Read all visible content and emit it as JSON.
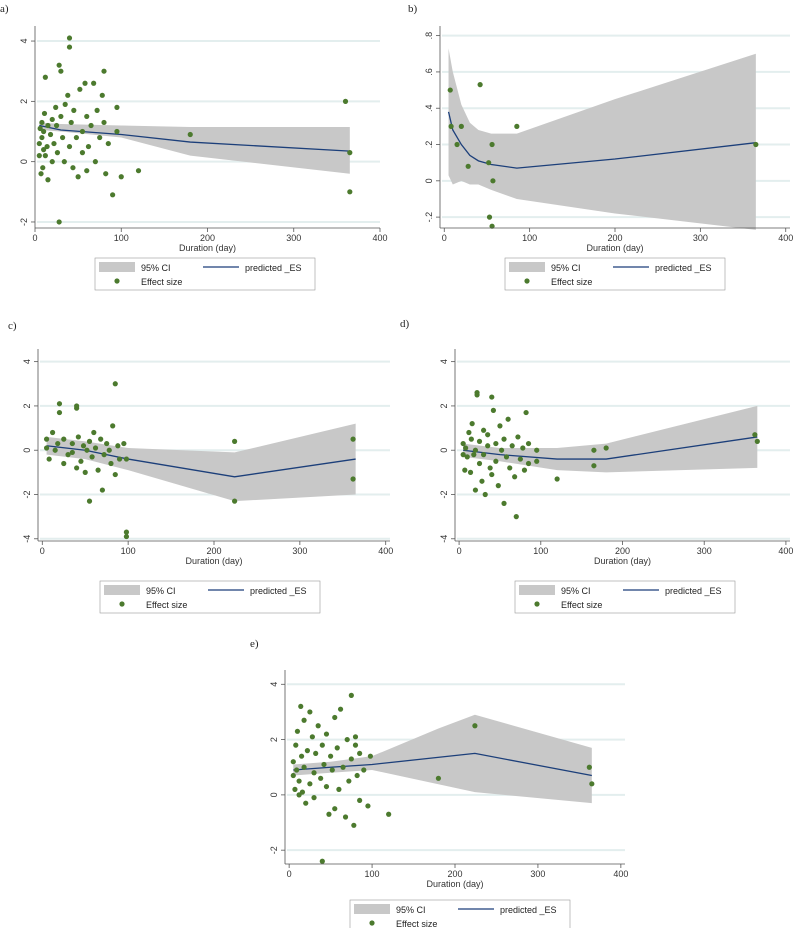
{
  "colors": {
    "ci_fill": "#c8c8c8",
    "line": "#1c3f7a",
    "point": "#4c7a2e",
    "grid": "#e3eeee",
    "axis": "#555555",
    "legend_border": "#999999"
  },
  "legend": {
    "ci": "95% CI",
    "predicted": "predicted _ES",
    "effect": "Effect size"
  },
  "chart_data": [
    {
      "id": "a",
      "panel_label": "a)",
      "type": "scatter",
      "xlabel": "Duration (day)",
      "ylabel": "",
      "xlim": [
        0,
        400
      ],
      "ylim": [
        -2.2,
        4.3
      ],
      "xticks": [
        0,
        100,
        200,
        300,
        400
      ],
      "xtick_labels": [
        "0",
        "100",
        "200",
        "300",
        "400"
      ],
      "yticks": [
        -2,
        0,
        2,
        4
      ],
      "ytick_labels": [
        "-2",
        "0",
        "2",
        "4"
      ],
      "line": [
        [
          5,
          1.2
        ],
        [
          30,
          1.05
        ],
        [
          100,
          0.9
        ],
        [
          180,
          0.65
        ],
        [
          365,
          0.35
        ]
      ],
      "ci_upper": [
        [
          5,
          1.3
        ],
        [
          30,
          1.25
        ],
        [
          100,
          1.2
        ],
        [
          180,
          1.15
        ],
        [
          365,
          1.15
        ]
      ],
      "ci_lower": [
        [
          5,
          1.05
        ],
        [
          30,
          1.0
        ],
        [
          100,
          0.8
        ],
        [
          180,
          0.2
        ],
        [
          365,
          -0.4
        ]
      ],
      "points": [
        [
          5,
          0.2
        ],
        [
          5,
          0.6
        ],
        [
          6,
          1.1
        ],
        [
          7,
          -0.4
        ],
        [
          8,
          0.8
        ],
        [
          8,
          1.3
        ],
        [
          9,
          -0.2
        ],
        [
          10,
          0.4
        ],
        [
          10,
          1.0
        ],
        [
          11,
          1.6
        ],
        [
          12,
          0.2
        ],
        [
          12,
          2.8
        ],
        [
          14,
          0.5
        ],
        [
          15,
          -0.6
        ],
        [
          15,
          1.2
        ],
        [
          18,
          0.9
        ],
        [
          20,
          1.4
        ],
        [
          20,
          0.0
        ],
        [
          22,
          0.6
        ],
        [
          24,
          1.8
        ],
        [
          25,
          1.2
        ],
        [
          26,
          0.3
        ],
        [
          28,
          3.2
        ],
        [
          28,
          -2.0
        ],
        [
          30,
          3.0
        ],
        [
          30,
          1.5
        ],
        [
          32,
          0.8
        ],
        [
          34,
          0.0
        ],
        [
          35,
          1.9
        ],
        [
          38,
          2.2
        ],
        [
          40,
          4.1
        ],
        [
          40,
          3.8
        ],
        [
          40,
          0.5
        ],
        [
          42,
          1.3
        ],
        [
          44,
          -0.2
        ],
        [
          45,
          1.7
        ],
        [
          48,
          0.8
        ],
        [
          50,
          -0.5
        ],
        [
          52,
          2.4
        ],
        [
          55,
          1.0
        ],
        [
          55,
          0.3
        ],
        [
          58,
          2.6
        ],
        [
          60,
          1.5
        ],
        [
          60,
          -0.3
        ],
        [
          62,
          0.5
        ],
        [
          65,
          1.2
        ],
        [
          68,
          2.6
        ],
        [
          70,
          0.0
        ],
        [
          72,
          1.7
        ],
        [
          75,
          0.8
        ],
        [
          78,
          2.2
        ],
        [
          80,
          3.0
        ],
        [
          80,
          1.3
        ],
        [
          82,
          -0.4
        ],
        [
          85,
          0.6
        ],
        [
          90,
          -1.1
        ],
        [
          95,
          1.8
        ],
        [
          95,
          1.0
        ],
        [
          100,
          -0.5
        ],
        [
          120,
          -0.3
        ],
        [
          180,
          0.9
        ],
        [
          360,
          2.0
        ],
        [
          365,
          0.3
        ],
        [
          365,
          -1.0
        ]
      ]
    },
    {
      "id": "b",
      "panel_label": "b)",
      "type": "scatter",
      "xlabel": "Duration (day)",
      "ylabel": "",
      "xlim": [
        -5,
        405
      ],
      "ylim": [
        -0.26,
        0.82
      ],
      "xticks": [
        0,
        100,
        200,
        300,
        400
      ],
      "xtick_labels": [
        "0",
        "100",
        "200",
        "300",
        "400"
      ],
      "yticks": [
        -0.2,
        0,
        0.2,
        0.4,
        0.6,
        0.8
      ],
      "ytick_labels": [
        "-.2",
        "0",
        ".2",
        ".4",
        ".6",
        ".8"
      ],
      "line": [
        [
          5,
          0.38
        ],
        [
          10,
          0.28
        ],
        [
          20,
          0.2
        ],
        [
          30,
          0.14
        ],
        [
          40,
          0.11
        ],
        [
          55,
          0.09
        ],
        [
          85,
          0.07
        ],
        [
          200,
          0.12
        ],
        [
          365,
          0.21
        ]
      ],
      "ci_upper": [
        [
          5,
          0.73
        ],
        [
          10,
          0.6
        ],
        [
          20,
          0.42
        ],
        [
          30,
          0.32
        ],
        [
          40,
          0.28
        ],
        [
          55,
          0.26
        ],
        [
          85,
          0.26
        ],
        [
          200,
          0.45
        ],
        [
          365,
          0.7
        ]
      ],
      "ci_lower": [
        [
          5,
          0.03
        ],
        [
          10,
          -0.02
        ],
        [
          20,
          0.0
        ],
        [
          30,
          -0.02
        ],
        [
          40,
          -0.02
        ],
        [
          55,
          -0.05
        ],
        [
          85,
          -0.1
        ],
        [
          200,
          -0.18
        ],
        [
          365,
          -0.27
        ]
      ],
      "points": [
        [
          7,
          0.5
        ],
        [
          8,
          0.3
        ],
        [
          15,
          0.2
        ],
        [
          20,
          0.3
        ],
        [
          28,
          0.08
        ],
        [
          42,
          0.53
        ],
        [
          52,
          0.1
        ],
        [
          53,
          -0.2
        ],
        [
          56,
          -0.25
        ],
        [
          56,
          0.2
        ],
        [
          57,
          0.0
        ],
        [
          85,
          0.3
        ],
        [
          365,
          0.2
        ]
      ]
    },
    {
      "id": "c",
      "panel_label": "c)",
      "type": "scatter",
      "xlabel": "Duration (day)",
      "ylabel": "",
      "xlim": [
        -5,
        405
      ],
      "ylim": [
        -4.1,
        4.3
      ],
      "xticks": [
        0,
        100,
        200,
        300,
        400
      ],
      "xtick_labels": [
        "0",
        "100",
        "200",
        "300",
        "400"
      ],
      "yticks": [
        -4,
        -2,
        0,
        2,
        4
      ],
      "ytick_labels": [
        "-4",
        "-2",
        "0",
        "2",
        "4"
      ],
      "line": [
        [
          5,
          0.2
        ],
        [
          50,
          0.0
        ],
        [
          100,
          -0.4
        ],
        [
          224,
          -1.2
        ],
        [
          365,
          -0.4
        ]
      ],
      "ci_upper": [
        [
          5,
          0.6
        ],
        [
          50,
          0.4
        ],
        [
          100,
          0.1
        ],
        [
          224,
          -0.1
        ],
        [
          365,
          1.2
        ]
      ],
      "ci_lower": [
        [
          5,
          -0.2
        ],
        [
          50,
          -0.4
        ],
        [
          100,
          -0.9
        ],
        [
          224,
          -2.3
        ],
        [
          365,
          -2.0
        ]
      ],
      "points": [
        [
          5,
          0.5
        ],
        [
          5,
          0.1
        ],
        [
          8,
          -0.4
        ],
        [
          12,
          0.8
        ],
        [
          15,
          0.0
        ],
        [
          18,
          0.3
        ],
        [
          20,
          1.7
        ],
        [
          20,
          2.1
        ],
        [
          25,
          -0.6
        ],
        [
          25,
          0.5
        ],
        [
          30,
          -0.2
        ],
        [
          35,
          -0.1
        ],
        [
          35,
          0.3
        ],
        [
          40,
          2.0
        ],
        [
          40,
          1.9
        ],
        [
          40,
          -0.8
        ],
        [
          42,
          0.6
        ],
        [
          45,
          -0.5
        ],
        [
          48,
          0.2
        ],
        [
          50,
          -1.0
        ],
        [
          52,
          0.0
        ],
        [
          55,
          0.4
        ],
        [
          55,
          -2.3
        ],
        [
          58,
          -0.3
        ],
        [
          60,
          0.8
        ],
        [
          62,
          0.1
        ],
        [
          65,
          -0.9
        ],
        [
          68,
          0.5
        ],
        [
          70,
          -1.8
        ],
        [
          72,
          -0.2
        ],
        [
          75,
          0.3
        ],
        [
          78,
          0.0
        ],
        [
          80,
          -0.6
        ],
        [
          82,
          1.1
        ],
        [
          85,
          3.0
        ],
        [
          85,
          -1.1
        ],
        [
          88,
          0.2
        ],
        [
          90,
          -0.4
        ],
        [
          95,
          0.3
        ],
        [
          98,
          -3.7
        ],
        [
          98,
          -3.9
        ],
        [
          98,
          -0.4
        ],
        [
          224,
          0.4
        ],
        [
          224,
          -2.3
        ],
        [
          362,
          0.5
        ],
        [
          362,
          -1.3
        ]
      ]
    },
    {
      "id": "d",
      "panel_label": "d)",
      "type": "scatter",
      "xlabel": "Duration (day)",
      "ylabel": "",
      "xlim": [
        -5,
        405
      ],
      "ylim": [
        -4.1,
        4.3
      ],
      "xticks": [
        0,
        100,
        200,
        300,
        400
      ],
      "xtick_labels": [
        "0",
        "100",
        "200",
        "300",
        "400"
      ],
      "yticks": [
        -4,
        -2,
        0,
        2,
        4
      ],
      "ytick_labels": [
        "-4",
        "-2",
        "0",
        "2",
        "4"
      ],
      "line": [
        [
          5,
          0.0
        ],
        [
          50,
          -0.2
        ],
        [
          120,
          -0.4
        ],
        [
          180,
          -0.4
        ],
        [
          365,
          0.6
        ]
      ],
      "ci_upper": [
        [
          5,
          0.3
        ],
        [
          50,
          0.1
        ],
        [
          120,
          0.1
        ],
        [
          180,
          0.3
        ],
        [
          365,
          2.0
        ]
      ],
      "ci_lower": [
        [
          5,
          -0.3
        ],
        [
          50,
          -0.5
        ],
        [
          120,
          -0.9
        ],
        [
          180,
          -1.0
        ],
        [
          365,
          -0.8
        ]
      ],
      "points": [
        [
          5,
          -0.2
        ],
        [
          5,
          0.3
        ],
        [
          7,
          -0.9
        ],
        [
          8,
          0.1
        ],
        [
          10,
          -0.3
        ],
        [
          12,
          0.8
        ],
        [
          14,
          -1.0
        ],
        [
          15,
          0.5
        ],
        [
          16,
          1.2
        ],
        [
          18,
          -0.2
        ],
        [
          20,
          -1.8
        ],
        [
          20,
          0.0
        ],
        [
          22,
          2.6
        ],
        [
          22,
          2.5
        ],
        [
          25,
          -0.6
        ],
        [
          25,
          0.4
        ],
        [
          28,
          -1.4
        ],
        [
          30,
          0.9
        ],
        [
          30,
          -0.2
        ],
        [
          32,
          -2.0
        ],
        [
          35,
          0.7
        ],
        [
          35,
          0.2
        ],
        [
          38,
          -0.8
        ],
        [
          40,
          2.4
        ],
        [
          40,
          -1.1
        ],
        [
          42,
          1.8
        ],
        [
          45,
          0.3
        ],
        [
          45,
          -0.5
        ],
        [
          48,
          -1.6
        ],
        [
          50,
          1.1
        ],
        [
          52,
          0.0
        ],
        [
          55,
          -2.4
        ],
        [
          55,
          0.5
        ],
        [
          58,
          -0.3
        ],
        [
          60,
          1.4
        ],
        [
          62,
          -0.8
        ],
        [
          65,
          0.2
        ],
        [
          68,
          -1.2
        ],
        [
          70,
          -3.0
        ],
        [
          72,
          0.6
        ],
        [
          75,
          -0.4
        ],
        [
          78,
          0.1
        ],
        [
          80,
          -0.9
        ],
        [
          82,
          1.7
        ],
        [
          85,
          0.3
        ],
        [
          85,
          -0.6
        ],
        [
          95,
          0.0
        ],
        [
          95,
          -0.5
        ],
        [
          120,
          -1.3
        ],
        [
          165,
          0.0
        ],
        [
          165,
          -0.7
        ],
        [
          180,
          0.1
        ],
        [
          362,
          0.7
        ],
        [
          365,
          0.4
        ]
      ]
    },
    {
      "id": "e",
      "panel_label": "e)",
      "type": "scatter",
      "xlabel": "Duration (day)",
      "ylabel": "",
      "xlim": [
        -5,
        405
      ],
      "ylim": [
        -2.5,
        4.3
      ],
      "xticks": [
        0,
        100,
        200,
        300,
        400
      ],
      "xtick_labels": [
        "0",
        "100",
        "200",
        "300",
        "400"
      ],
      "yticks": [
        -2,
        0,
        2,
        4
      ],
      "ytick_labels": [
        "-2",
        "0",
        "2",
        "4"
      ],
      "line": [
        [
          5,
          0.9
        ],
        [
          50,
          1.0
        ],
        [
          100,
          1.1
        ],
        [
          224,
          1.5
        ],
        [
          365,
          0.7
        ]
      ],
      "ci_upper": [
        [
          5,
          1.1
        ],
        [
          50,
          1.2
        ],
        [
          100,
          1.4
        ],
        [
          180,
          2.4
        ],
        [
          224,
          2.9
        ],
        [
          365,
          1.7
        ]
      ],
      "ci_lower": [
        [
          5,
          0.7
        ],
        [
          50,
          0.8
        ],
        [
          100,
          0.9
        ],
        [
          224,
          0.1
        ],
        [
          365,
          -0.3
        ]
      ],
      "points": [
        [
          5,
          0.7
        ],
        [
          5,
          1.2
        ],
        [
          7,
          0.2
        ],
        [
          8,
          1.8
        ],
        [
          9,
          0.9
        ],
        [
          10,
          2.3
        ],
        [
          12,
          0.5
        ],
        [
          12,
          0.0
        ],
        [
          14,
          3.2
        ],
        [
          15,
          1.4
        ],
        [
          16,
          0.1
        ],
        [
          18,
          2.7
        ],
        [
          18,
          1.0
        ],
        [
          20,
          -0.3
        ],
        [
          22,
          1.6
        ],
        [
          25,
          3.0
        ],
        [
          25,
          0.4
        ],
        [
          28,
          2.1
        ],
        [
          30,
          0.8
        ],
        [
          30,
          -0.1
        ],
        [
          32,
          1.5
        ],
        [
          35,
          2.5
        ],
        [
          38,
          0.6
        ],
        [
          40,
          1.8
        ],
        [
          40,
          -2.4
        ],
        [
          42,
          1.1
        ],
        [
          45,
          0.3
        ],
        [
          45,
          2.2
        ],
        [
          48,
          -0.7
        ],
        [
          50,
          1.4
        ],
        [
          52,
          0.9
        ],
        [
          55,
          2.8
        ],
        [
          55,
          -0.5
        ],
        [
          58,
          1.7
        ],
        [
          60,
          0.2
        ],
        [
          62,
          3.1
        ],
        [
          65,
          1.0
        ],
        [
          68,
          -0.8
        ],
        [
          70,
          2.0
        ],
        [
          72,
          0.5
        ],
        [
          75,
          3.6
        ],
        [
          75,
          1.3
        ],
        [
          78,
          -1.1
        ],
        [
          80,
          2.1
        ],
        [
          80,
          1.8
        ],
        [
          82,
          0.7
        ],
        [
          85,
          1.5
        ],
        [
          85,
          -0.2
        ],
        [
          90,
          0.9
        ],
        [
          95,
          -0.4
        ],
        [
          98,
          1.4
        ],
        [
          120,
          -0.7
        ],
        [
          180,
          0.6
        ],
        [
          224,
          2.5
        ],
        [
          362,
          1.0
        ],
        [
          365,
          0.4
        ]
      ]
    }
  ]
}
